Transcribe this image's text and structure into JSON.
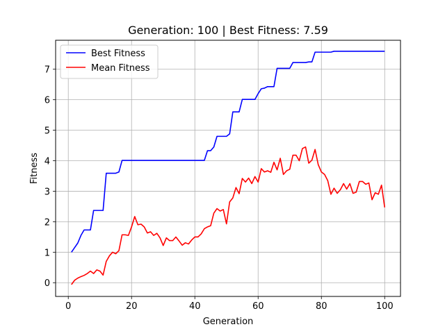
{
  "chart_data": {
    "type": "line",
    "title": "Generation: 100 | Best Fitness: 7.59",
    "xlabel": "Generation",
    "ylabel": "Fitness",
    "xlim": [
      -4,
      105
    ],
    "ylim": [
      -0.45,
      7.95
    ],
    "x_ticks": [
      0,
      20,
      40,
      60,
      80,
      100
    ],
    "y_ticks": [
      0,
      1,
      2,
      3,
      4,
      5,
      6,
      7
    ],
    "grid": true,
    "legend": "top-left",
    "x": [
      1,
      2,
      3,
      4,
      5,
      6,
      7,
      8,
      9,
      10,
      11,
      12,
      13,
      14,
      15,
      16,
      17,
      18,
      19,
      20,
      21,
      22,
      23,
      24,
      25,
      26,
      27,
      28,
      29,
      30,
      31,
      32,
      33,
      34,
      35,
      36,
      37,
      38,
      39,
      40,
      41,
      42,
      43,
      44,
      45,
      46,
      47,
      48,
      49,
      50,
      51,
      52,
      53,
      54,
      55,
      56,
      57,
      58,
      59,
      60,
      61,
      62,
      63,
      64,
      65,
      66,
      67,
      68,
      69,
      70,
      71,
      72,
      73,
      74,
      75,
      76,
      77,
      78,
      79,
      80,
      81,
      82,
      83,
      84,
      85,
      86,
      87,
      88,
      89,
      90,
      91,
      92,
      93,
      94,
      95,
      96,
      97,
      98,
      99,
      100
    ],
    "series": [
      {
        "name": "Best Fitness",
        "color": "#0000ff",
        "values": [
          1.0,
          1.15,
          1.3,
          1.55,
          1.73,
          1.73,
          1.73,
          2.37,
          2.37,
          2.37,
          2.37,
          3.59,
          3.59,
          3.59,
          3.59,
          3.63,
          4.01,
          4.01,
          4.01,
          4.01,
          4.01,
          4.01,
          4.01,
          4.01,
          4.01,
          4.01,
          4.01,
          4.01,
          4.01,
          4.01,
          4.01,
          4.01,
          4.01,
          4.01,
          4.01,
          4.01,
          4.01,
          4.01,
          4.01,
          4.01,
          4.01,
          4.01,
          4.01,
          4.33,
          4.33,
          4.45,
          4.8,
          4.8,
          4.8,
          4.8,
          4.88,
          5.6,
          5.6,
          5.6,
          6.01,
          6.01,
          6.01,
          6.01,
          6.01,
          6.2,
          6.36,
          6.38,
          6.43,
          6.43,
          6.43,
          7.03,
          7.03,
          7.03,
          7.03,
          7.03,
          7.22,
          7.22,
          7.22,
          7.22,
          7.22,
          7.24,
          7.24,
          7.56,
          7.56,
          7.56,
          7.56,
          7.56,
          7.56,
          7.59,
          7.59,
          7.59,
          7.59,
          7.59,
          7.59,
          7.59,
          7.59,
          7.59,
          7.59,
          7.59,
          7.59,
          7.59,
          7.59,
          7.59,
          7.59,
          7.59
        ]
      },
      {
        "name": "Mean Fitness",
        "color": "#ff0000",
        "values": [
          -0.06,
          0.08,
          0.15,
          0.2,
          0.24,
          0.3,
          0.38,
          0.3,
          0.42,
          0.38,
          0.25,
          0.7,
          0.88,
          1.0,
          0.95,
          1.05,
          1.57,
          1.57,
          1.55,
          1.83,
          2.17,
          1.9,
          1.92,
          1.83,
          1.63,
          1.67,
          1.55,
          1.62,
          1.47,
          1.22,
          1.47,
          1.38,
          1.38,
          1.5,
          1.37,
          1.23,
          1.31,
          1.27,
          1.4,
          1.5,
          1.5,
          1.6,
          1.77,
          1.83,
          1.87,
          2.28,
          2.43,
          2.35,
          2.4,
          1.93,
          2.65,
          2.78,
          3.12,
          2.92,
          3.42,
          3.3,
          3.43,
          3.25,
          3.48,
          3.3,
          3.74,
          3.63,
          3.67,
          3.62,
          3.95,
          3.7,
          4.08,
          3.55,
          3.67,
          3.72,
          4.18,
          4.18,
          4.0,
          4.4,
          4.45,
          3.92,
          4.02,
          4.37,
          3.87,
          3.63,
          3.55,
          3.35,
          2.9,
          3.1,
          2.93,
          3.05,
          3.25,
          3.07,
          3.25,
          2.93,
          2.97,
          3.32,
          3.32,
          3.23,
          3.27,
          2.72,
          2.95,
          2.9,
          3.2,
          2.47
        ]
      }
    ]
  }
}
